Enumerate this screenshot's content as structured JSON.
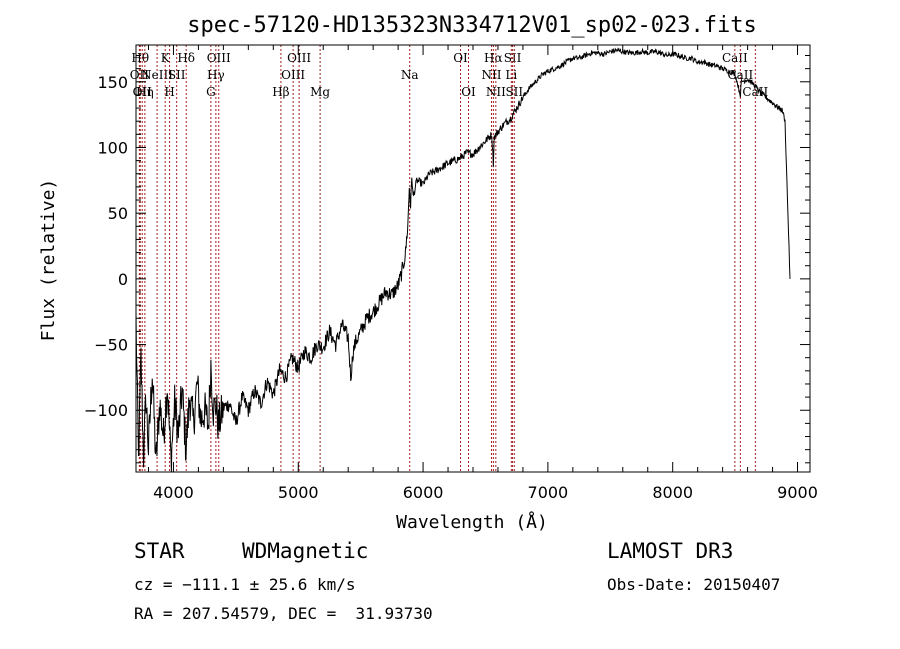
{
  "chart_data": {
    "type": "line",
    "title": "spec-57120-HD135323N334712V01_sp02-023.fits",
    "xlabel": "Wavelength (Å)",
    "ylabel": "Flux (relative)",
    "xlim": [
      3700,
      9100
    ],
    "ylim": [
      -147,
      178
    ],
    "x_ticks": [
      4000,
      5000,
      6000,
      7000,
      8000,
      9000
    ],
    "x_tick_labels": [
      "4000",
      "5000",
      "6000",
      "7000",
      "8000",
      "9000"
    ],
    "y_ticks": [
      -100,
      -50,
      0,
      50,
      100,
      150
    ],
    "y_tick_labels": [
      "−100",
      "−50",
      "0",
      "50",
      "100",
      "150"
    ],
    "series": [
      {
        "name": "flux",
        "x": [
          3700,
          3720,
          3740,
          3760,
          3780,
          3800,
          3830,
          3860,
          3890,
          3920,
          3950,
          3980,
          4010,
          4040,
          4070,
          4100,
          4130,
          4160,
          4190,
          4220,
          4250,
          4280,
          4300,
          4320,
          4340,
          4360,
          4400,
          4450,
          4500,
          4550,
          4600,
          4650,
          4700,
          4750,
          4800,
          4850,
          4900,
          4950,
          5000,
          5050,
          5100,
          5150,
          5200,
          5250,
          5300,
          5350,
          5400,
          5420,
          5440,
          5460,
          5500,
          5550,
          5600,
          5650,
          5700,
          5750,
          5800,
          5830,
          5860,
          5880,
          5890,
          5900,
          5910,
          5920,
          5950,
          6000,
          6050,
          6100,
          6150,
          6200,
          6250,
          6300,
          6350,
          6400,
          6450,
          6500,
          6550,
          6563,
          6570,
          6600,
          6650,
          6700,
          6750,
          6800,
          6850,
          6900,
          6950,
          7000,
          7050,
          7100,
          7150,
          7200,
          7250,
          7300,
          7350,
          7400,
          7450,
          7500,
          7550,
          7600,
          7650,
          7700,
          7750,
          7800,
          7850,
          7900,
          7950,
          8000,
          8050,
          8100,
          8150,
          8200,
          8250,
          8300,
          8350,
          8400,
          8450,
          8500,
          8542,
          8550,
          8600,
          8650,
          8700,
          8750,
          8800,
          8850,
          8880,
          8900,
          8920,
          8940
        ],
        "y": [
          -30,
          -140,
          -60,
          -135,
          -90,
          -130,
          -70,
          -140,
          -95,
          -120,
          -80,
          -138,
          -95,
          -118,
          -85,
          -130,
          -90,
          -110,
          -80,
          -108,
          -100,
          -112,
          -65,
          -100,
          -95,
          -112,
          -98,
          -95,
          -110,
          -90,
          -100,
          -85,
          -95,
          -78,
          -88,
          -70,
          -75,
          -60,
          -68,
          -55,
          -60,
          -50,
          -52,
          -40,
          -50,
          -35,
          -45,
          -75,
          -55,
          -48,
          -40,
          -30,
          -25,
          -18,
          -10,
          -12,
          -5,
          5,
          20,
          45,
          70,
          55,
          78,
          62,
          75,
          72,
          80,
          82,
          85,
          88,
          90,
          92,
          96,
          95,
          100,
          105,
          110,
          88,
          108,
          112,
          118,
          122,
          130,
          138,
          145,
          150,
          155,
          158,
          160,
          162,
          165,
          168,
          168,
          170,
          172,
          172,
          171,
          173,
          174,
          173,
          172,
          172,
          173,
          172,
          173,
          172,
          170,
          171,
          170,
          168,
          168,
          165,
          165,
          163,
          162,
          160,
          158,
          156,
          140,
          150,
          152,
          148,
          142,
          138,
          134,
          130,
          128,
          120,
          60,
          0
        ]
      }
    ],
    "line_markers": [
      {
        "wavelength": 3727,
        "label": "OII",
        "row": 2
      },
      {
        "wavelength": 3734,
        "label": "Hθ",
        "row": 1
      },
      {
        "wavelength": 3750,
        "label": "OII",
        "row": 3
      },
      {
        "wavelength": 3771,
        "label": "Hη",
        "row": 3
      },
      {
        "wavelength": 3869,
        "label": "NeIII",
        "row": 2
      },
      {
        "wavelength": 3934,
        "label": "K",
        "row": 1
      },
      {
        "wavelength": 3969,
        "label": "H",
        "row": 3
      },
      {
        "wavelength": 4026,
        "label": "SII",
        "row": 2
      },
      {
        "wavelength": 4102,
        "label": "Hδ",
        "row": 1
      },
      {
        "wavelength": 4300,
        "label": "G",
        "row": 3
      },
      {
        "wavelength": 4340,
        "label": "Hγ",
        "row": 2
      },
      {
        "wavelength": 4363,
        "label": "OIII",
        "row": 1
      },
      {
        "wavelength": 4861,
        "label": "Hβ",
        "row": 3
      },
      {
        "wavelength": 4959,
        "label": "OIII",
        "row": 2
      },
      {
        "wavelength": 5007,
        "label": "OIII",
        "row": 1
      },
      {
        "wavelength": 5175,
        "label": "Mg",
        "row": 3
      },
      {
        "wavelength": 5893,
        "label": "Na",
        "row": 2
      },
      {
        "wavelength": 6300,
        "label": "OI",
        "row": 1
      },
      {
        "wavelength": 6364,
        "label": "OI",
        "row": 3
      },
      {
        "wavelength": 6548,
        "label": "NII",
        "row": 2
      },
      {
        "wavelength": 6563,
        "label": "Hα",
        "row": 1
      },
      {
        "wavelength": 6583,
        "label": "NII",
        "row": 3
      },
      {
        "wavelength": 6707,
        "label": "Li",
        "row": 2
      },
      {
        "wavelength": 6717,
        "label": "SII",
        "row": 1
      },
      {
        "wavelength": 6731,
        "label": "SII",
        "row": 3
      },
      {
        "wavelength": 8498,
        "label": "CaII",
        "row": 1
      },
      {
        "wavelength": 8542,
        "label": "CaII",
        "row": 2
      },
      {
        "wavelength": 8662,
        "label": "CaII",
        "row": 3
      }
    ],
    "colors": {
      "spectrum": "#000000",
      "markers": "#a02020",
      "axes": "#000000"
    }
  },
  "info": {
    "class": "STAR",
    "subclass": "WDMagnetic",
    "survey": "LAMOST DR3",
    "cz": "cz = −111.1 ± 25.6 km/s",
    "obs_date": "Obs-Date: 20150407",
    "radec": "RA = 207.54579, DEC =  31.93730"
  }
}
